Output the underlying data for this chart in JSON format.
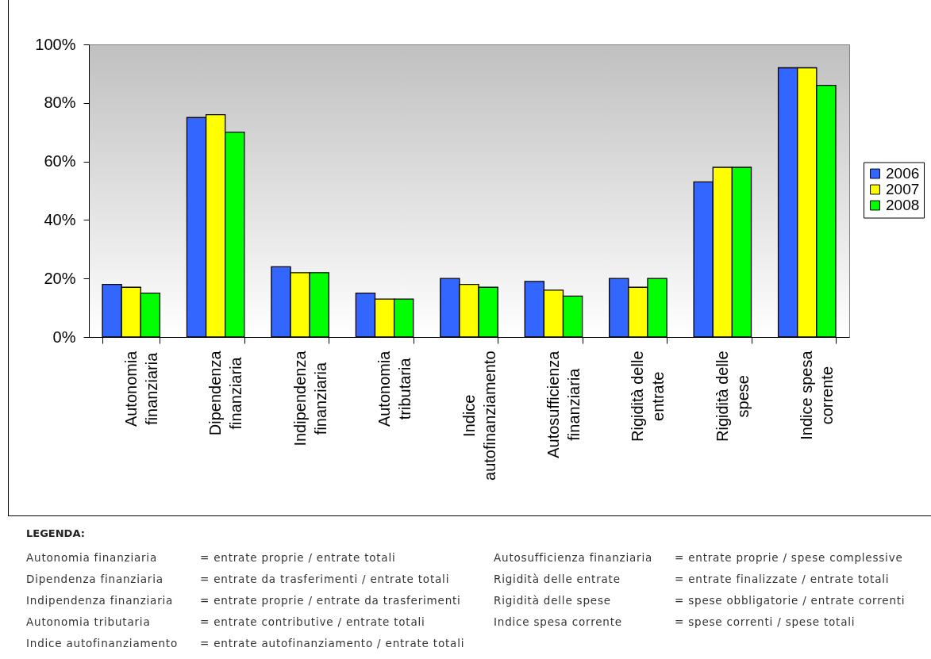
{
  "chart_data": {
    "type": "bar",
    "categories": [
      "Autonomia finanziaria",
      "Dipendenza finanziaria",
      "Indipendenza finanziaria",
      "Autonomia tributaria",
      "Indice autofinanziamento",
      "Autosufficienza finanziaria",
      "Rigidità delle entrate",
      "Rigidità delle spese",
      "Indice spesa corrente"
    ],
    "series": [
      {
        "name": "2006",
        "color": "#3366ff",
        "values": [
          18,
          75,
          24,
          15,
          20,
          19,
          20,
          53,
          92
        ]
      },
      {
        "name": "2007",
        "color": "#ffff00",
        "values": [
          17,
          76,
          22,
          13,
          18,
          16,
          17,
          58,
          92
        ]
      },
      {
        "name": "2008",
        "color": "#00ff00",
        "values": [
          15,
          70,
          22,
          13,
          17,
          14,
          20,
          58,
          86
        ]
      }
    ],
    "ylim": [
      0,
      100
    ],
    "yticks": [
      {
        "value": 0,
        "label": "0%"
      },
      {
        "value": 20,
        "label": "20%"
      },
      {
        "value": 40,
        "label": "40%"
      },
      {
        "value": 60,
        "label": "60%"
      },
      {
        "value": 80,
        "label": "80%"
      },
      {
        "value": 100,
        "label": "100%"
      }
    ],
    "legend": "right",
    "annotations": [
      "LEGENDA:",
      "Autonomia finanziaria = entrate proprie / entrate totali",
      "Dipendenza finanziaria = entrate da trasferimenti / entrate totali",
      "Indipendenza finanziaria = entrate proprie / entrate da trasferimenti",
      "Autonomia tributaria = entrate contributive / entrate totali",
      "Indice autofinanziamento = entrate autofinanziamento / entrate totali",
      "Autosufficienza finanziaria = entrate proprie / spese complessive",
      "Rigidità delle entrate = entrate finalizzate / entrate totali",
      "Rigidità delle spese = spese obbligatorie / entrate correnti",
      "Indice spesa corrente = spese correnti / spese totali"
    ]
  }
}
